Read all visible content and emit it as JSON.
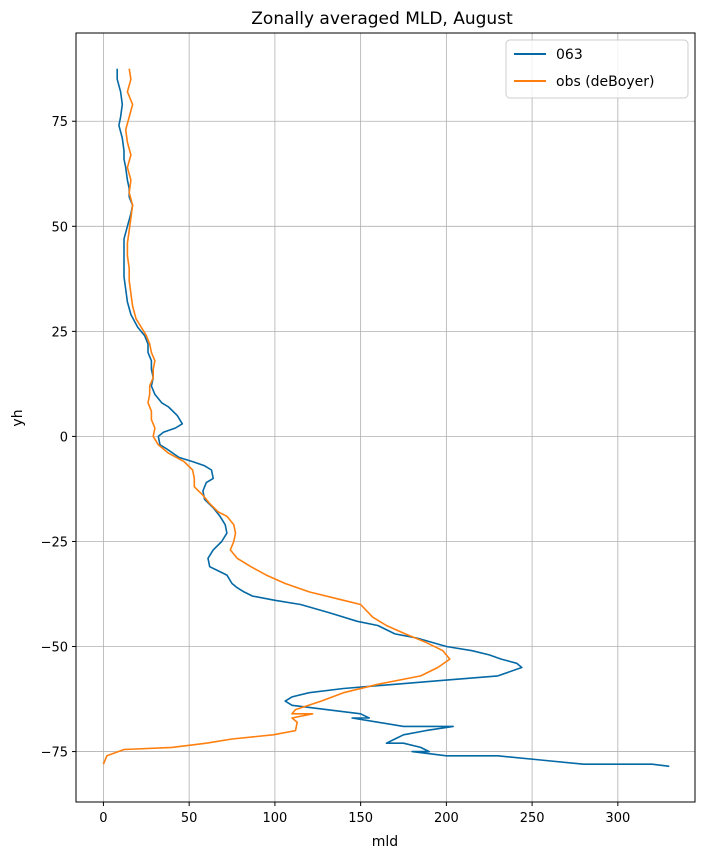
{
  "chart_data": {
    "type": "line",
    "title": "Zonally averaged MLD, August",
    "xlabel": "mld",
    "ylabel": "yh",
    "xlim": [
      -16,
      345
    ],
    "ylim": [
      -87,
      96
    ],
    "xticks": [
      0,
      50,
      100,
      150,
      200,
      250,
      300
    ],
    "yticks": [
      -75,
      -50,
      -25,
      0,
      25,
      50,
      75
    ],
    "grid": true,
    "legend": "top-right",
    "series": [
      {
        "name": "063",
        "color": "#0569a5",
        "points": [
          [
            8,
            87.5
          ],
          [
            8,
            85
          ],
          [
            10,
            82
          ],
          [
            11,
            79
          ],
          [
            10,
            76
          ],
          [
            9,
            74
          ],
          [
            11,
            71
          ],
          [
            12,
            68
          ],
          [
            12,
            66
          ],
          [
            13,
            64
          ],
          [
            14,
            61
          ],
          [
            15,
            59
          ],
          [
            15,
            57
          ],
          [
            17,
            55
          ],
          [
            16,
            53
          ],
          [
            14,
            50
          ],
          [
            12,
            47
          ],
          [
            12,
            44
          ],
          [
            12,
            41
          ],
          [
            12,
            38
          ],
          [
            13,
            35
          ],
          [
            14,
            32
          ],
          [
            16,
            29
          ],
          [
            20,
            26
          ],
          [
            24,
            24
          ],
          [
            26,
            22
          ],
          [
            26,
            20
          ],
          [
            28,
            18
          ],
          [
            28,
            16
          ],
          [
            29,
            14
          ],
          [
            28,
            12
          ],
          [
            30,
            10
          ],
          [
            34,
            8
          ],
          [
            38,
            7
          ],
          [
            43,
            5
          ],
          [
            46,
            3
          ],
          [
            42,
            2
          ],
          [
            35,
            1
          ],
          [
            32,
            0
          ],
          [
            33,
            -2
          ],
          [
            37,
            -3
          ],
          [
            44,
            -5
          ],
          [
            52,
            -6
          ],
          [
            59,
            -7
          ],
          [
            63,
            -8
          ],
          [
            64,
            -10
          ],
          [
            60,
            -11
          ],
          [
            58,
            -13
          ],
          [
            59,
            -15
          ],
          [
            64,
            -17
          ],
          [
            68,
            -19
          ],
          [
            71,
            -21
          ],
          [
            72,
            -23
          ],
          [
            69,
            -25
          ],
          [
            64,
            -27
          ],
          [
            61,
            -29
          ],
          [
            62,
            -31
          ],
          [
            67,
            -32
          ],
          [
            72,
            -33
          ],
          [
            75,
            -35
          ],
          [
            78,
            -36
          ],
          [
            82,
            -37
          ],
          [
            87,
            -38
          ],
          [
            100,
            -39
          ],
          [
            115,
            -40
          ],
          [
            132,
            -42
          ],
          [
            148,
            -44
          ],
          [
            160,
            -45
          ],
          [
            170,
            -47
          ],
          [
            183,
            -48
          ],
          [
            200,
            -50
          ],
          [
            215,
            -51
          ],
          [
            225,
            -52
          ],
          [
            232,
            -53
          ],
          [
            241,
            -54
          ],
          [
            244,
            -55
          ],
          [
            230,
            -57
          ],
          [
            200,
            -58
          ],
          [
            170,
            -59
          ],
          [
            140,
            -60
          ],
          [
            120,
            -61
          ],
          [
            110,
            -62
          ],
          [
            106,
            -63
          ],
          [
            110,
            -64
          ],
          [
            130,
            -65
          ],
          [
            150,
            -66
          ],
          [
            155,
            -67
          ],
          [
            145,
            -67
          ],
          [
            160,
            -68
          ],
          [
            175,
            -69
          ],
          [
            204,
            -69
          ],
          [
            188,
            -70
          ],
          [
            175,
            -71
          ],
          [
            170,
            -72
          ],
          [
            165,
            -73
          ],
          [
            175,
            -73
          ],
          [
            185,
            -74
          ],
          [
            190,
            -75
          ],
          [
            180,
            -75
          ],
          [
            200,
            -76
          ],
          [
            230,
            -76
          ],
          [
            255,
            -77
          ],
          [
            280,
            -78
          ],
          [
            300,
            -78
          ],
          [
            320,
            -78
          ],
          [
            330,
            -78.5
          ]
        ]
      },
      {
        "name": "obs (deBoyer)",
        "color": "#ff7f0e",
        "points": [
          [
            15,
            87.5
          ],
          [
            16,
            85
          ],
          [
            14,
            82
          ],
          [
            17,
            79
          ],
          [
            15,
            76
          ],
          [
            13,
            73
          ],
          [
            14,
            70
          ],
          [
            16,
            67
          ],
          [
            14,
            64
          ],
          [
            16,
            61
          ],
          [
            15,
            58
          ],
          [
            17,
            55
          ],
          [
            16,
            52
          ],
          [
            15,
            49
          ],
          [
            14,
            46
          ],
          [
            14,
            43
          ],
          [
            15,
            40
          ],
          [
            15,
            37
          ],
          [
            16,
            34
          ],
          [
            17,
            31
          ],
          [
            19,
            28
          ],
          [
            22,
            26
          ],
          [
            25,
            24
          ],
          [
            27,
            22
          ],
          [
            28,
            20
          ],
          [
            30,
            18
          ],
          [
            29,
            16
          ],
          [
            29,
            14
          ],
          [
            27,
            12
          ],
          [
            27,
            10
          ],
          [
            26,
            8
          ],
          [
            28,
            6
          ],
          [
            28,
            4
          ],
          [
            30,
            2
          ],
          [
            29,
            0
          ],
          [
            32,
            -2
          ],
          [
            38,
            -4
          ],
          [
            47,
            -6
          ],
          [
            52,
            -8
          ],
          [
            53,
            -10
          ],
          [
            53,
            -12
          ],
          [
            58,
            -14
          ],
          [
            62,
            -16
          ],
          [
            67,
            -18
          ],
          [
            72,
            -19
          ],
          [
            76,
            -21
          ],
          [
            77,
            -23
          ],
          [
            76,
            -25
          ],
          [
            74,
            -27
          ],
          [
            78,
            -29
          ],
          [
            86,
            -31
          ],
          [
            95,
            -33
          ],
          [
            106,
            -35
          ],
          [
            120,
            -37
          ],
          [
            140,
            -39
          ],
          [
            150,
            -40
          ],
          [
            157,
            -43
          ],
          [
            165,
            -45
          ],
          [
            176,
            -47
          ],
          [
            188,
            -49
          ],
          [
            198,
            -51
          ],
          [
            202,
            -53
          ],
          [
            195,
            -55
          ],
          [
            185,
            -57
          ],
          [
            160,
            -59
          ],
          [
            140,
            -61
          ],
          [
            127,
            -63
          ],
          [
            112,
            -65
          ],
          [
            110,
            -66
          ],
          [
            122,
            -66
          ],
          [
            110,
            -67
          ],
          [
            113,
            -68
          ],
          [
            112,
            -70
          ],
          [
            99,
            -71
          ],
          [
            75,
            -72
          ],
          [
            60,
            -73
          ],
          [
            40,
            -74
          ],
          [
            12,
            -74.5
          ],
          [
            2,
            -76
          ],
          [
            0,
            -78
          ]
        ]
      }
    ]
  }
}
